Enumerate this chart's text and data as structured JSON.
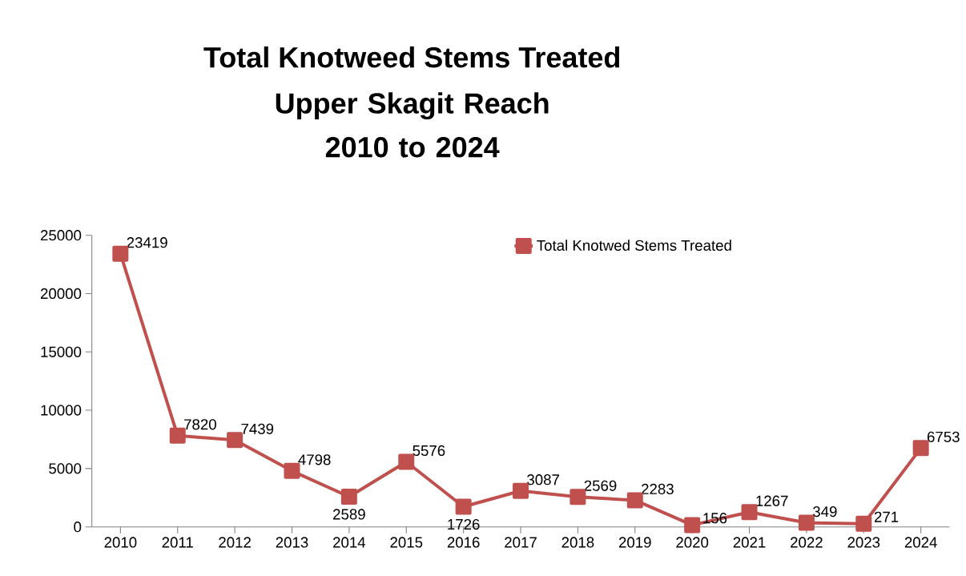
{
  "chart_data": {
    "type": "line",
    "title": "Total Knotweed Stems Treated",
    "subtitle": "Upper Skagit Reach 2010 to 2024",
    "categories": [
      "2010",
      "2011",
      "2012",
      "2013",
      "2014",
      "2015",
      "2016",
      "2017",
      "2018",
      "2019",
      "2020",
      "2021",
      "2022",
      "2023",
      "2024"
    ],
    "series": [
      {
        "name": "Total Knotwed Stems Treated",
        "color": "#c0504d",
        "values": [
          23419,
          7820,
          7439,
          4798,
          2589,
          5576,
          1726,
          3087,
          2569,
          2283,
          156,
          1267,
          349,
          271,
          6753
        ]
      }
    ],
    "ylim": [
      0,
      25000
    ],
    "yticks": [
      0,
      5000,
      10000,
      15000,
      20000,
      25000
    ],
    "grid": false,
    "legend": "top right",
    "marker": "square",
    "line_style": "solid",
    "data_labels": true
  }
}
